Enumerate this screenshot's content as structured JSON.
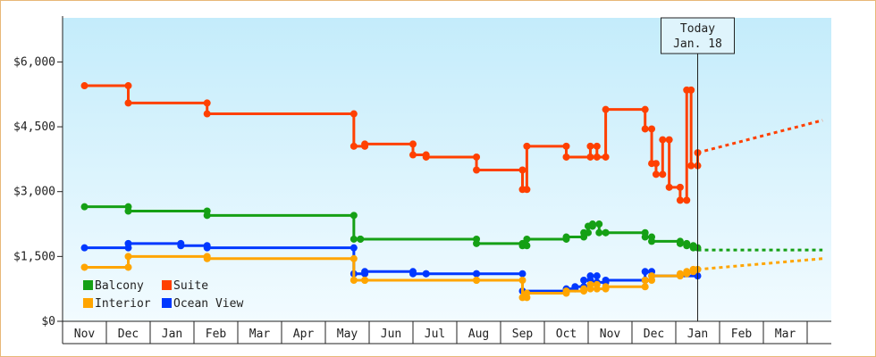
{
  "chart_data": {
    "type": "line",
    "y_ticks": [
      "$0",
      "$1,500",
      "$3,000",
      "$4,500",
      "$6,000"
    ],
    "y_tick_values": [
      0,
      1500,
      3000,
      4500,
      6000
    ],
    "ylim": [
      0,
      6000
    ],
    "x_months": [
      "Nov",
      "Dec",
      "Jan",
      "Feb",
      "Mar",
      "Apr",
      "May",
      "Jun",
      "Jul",
      "Aug",
      "Sep",
      "Oct",
      "Nov",
      "Dec",
      "Jan",
      "Feb",
      "Mar"
    ],
    "today_label_line1": "Today",
    "today_label_line2": "Jan. 18",
    "today_month_index": 14.0,
    "legend_placement": "bottom-left",
    "grid": false,
    "series": [
      {
        "name": "Suite",
        "color": "#ff4000",
        "points": [
          [
            0.0,
            5450
          ],
          [
            1.0,
            5450
          ],
          [
            1.0,
            5050
          ],
          [
            2.8,
            5050
          ],
          [
            2.8,
            4800
          ],
          [
            6.15,
            4800
          ],
          [
            6.15,
            4050
          ],
          [
            6.4,
            4050
          ],
          [
            6.4,
            4100
          ],
          [
            7.5,
            4100
          ],
          [
            7.5,
            3850
          ],
          [
            7.8,
            3850
          ],
          [
            7.8,
            3800
          ],
          [
            8.95,
            3800
          ],
          [
            8.95,
            3500
          ],
          [
            10.0,
            3500
          ],
          [
            10.0,
            3050
          ],
          [
            10.1,
            3050
          ],
          [
            10.1,
            4050
          ],
          [
            11.0,
            4050
          ],
          [
            11.0,
            3800
          ],
          [
            11.55,
            3800
          ],
          [
            11.55,
            4050
          ],
          [
            11.7,
            4050
          ],
          [
            11.7,
            3800
          ],
          [
            11.9,
            3800
          ],
          [
            11.9,
            4900
          ],
          [
            12.8,
            4900
          ],
          [
            12.8,
            4450
          ],
          [
            12.95,
            4450
          ],
          [
            12.95,
            3650
          ],
          [
            13.05,
            3650
          ],
          [
            13.05,
            3400
          ],
          [
            13.2,
            3400
          ],
          [
            13.2,
            4200
          ],
          [
            13.35,
            4200
          ],
          [
            13.35,
            3100
          ],
          [
            13.6,
            3100
          ],
          [
            13.6,
            2800
          ],
          [
            13.75,
            2800
          ],
          [
            13.75,
            5350
          ],
          [
            13.85,
            5350
          ],
          [
            13.85,
            3600
          ],
          [
            14.0,
            3600
          ],
          [
            14.0,
            3900
          ]
        ],
        "projection": [
          [
            14.0,
            3900
          ],
          [
            16.85,
            4650
          ]
        ]
      },
      {
        "name": "Balcony",
        "color": "#15a015",
        "points": [
          [
            0.0,
            2650
          ],
          [
            1.0,
            2650
          ],
          [
            1.0,
            2550
          ],
          [
            2.8,
            2550
          ],
          [
            2.8,
            2450
          ],
          [
            6.15,
            2450
          ],
          [
            6.15,
            1900
          ],
          [
            6.3,
            1900
          ],
          [
            6.3,
            1900
          ],
          [
            8.95,
            1900
          ],
          [
            8.95,
            1800
          ],
          [
            10.0,
            1800
          ],
          [
            10.0,
            1750
          ],
          [
            10.1,
            1750
          ],
          [
            10.1,
            1900
          ],
          [
            11.0,
            1900
          ],
          [
            11.0,
            1950
          ],
          [
            11.4,
            1950
          ],
          [
            11.4,
            2050
          ],
          [
            11.5,
            2050
          ],
          [
            11.5,
            2200
          ],
          [
            11.6,
            2200
          ],
          [
            11.6,
            2250
          ],
          [
            11.75,
            2250
          ],
          [
            11.75,
            2050
          ],
          [
            11.9,
            2050
          ],
          [
            11.9,
            2050
          ],
          [
            12.8,
            2050
          ],
          [
            12.8,
            1950
          ],
          [
            12.95,
            1950
          ],
          [
            12.95,
            1850
          ],
          [
            13.6,
            1850
          ],
          [
            13.6,
            1800
          ],
          [
            13.75,
            1800
          ],
          [
            13.75,
            1750
          ],
          [
            13.9,
            1750
          ],
          [
            13.9,
            1700
          ],
          [
            14.0,
            1700
          ]
        ],
        "projection": [
          [
            14.0,
            1650
          ],
          [
            16.85,
            1650
          ]
        ]
      },
      {
        "name": "Ocean View",
        "color": "#0038ff",
        "points": [
          [
            0.0,
            1700
          ],
          [
            1.0,
            1700
          ],
          [
            1.0,
            1800
          ],
          [
            2.2,
            1800
          ],
          [
            2.2,
            1750
          ],
          [
            2.8,
            1750
          ],
          [
            2.8,
            1700
          ],
          [
            6.15,
            1700
          ],
          [
            6.15,
            1100
          ],
          [
            6.4,
            1100
          ],
          [
            6.4,
            1150
          ],
          [
            7.5,
            1150
          ],
          [
            7.5,
            1100
          ],
          [
            7.8,
            1100
          ],
          [
            7.8,
            1100
          ],
          [
            8.95,
            1100
          ],
          [
            8.95,
            1100
          ],
          [
            10.0,
            1100
          ],
          [
            10.0,
            700
          ],
          [
            11.0,
            700
          ],
          [
            11.0,
            750
          ],
          [
            11.2,
            750
          ],
          [
            11.2,
            800
          ],
          [
            11.4,
            800
          ],
          [
            11.4,
            950
          ],
          [
            11.55,
            950
          ],
          [
            11.55,
            1050
          ],
          [
            11.7,
            1050
          ],
          [
            11.7,
            900
          ],
          [
            11.9,
            900
          ],
          [
            11.9,
            950
          ],
          [
            12.8,
            950
          ],
          [
            12.8,
            1150
          ],
          [
            12.95,
            1150
          ],
          [
            12.95,
            1050
          ],
          [
            14.0,
            1050
          ]
        ],
        "projection": []
      },
      {
        "name": "Interior",
        "color": "#ffa500",
        "points": [
          [
            0.0,
            1250
          ],
          [
            1.0,
            1250
          ],
          [
            1.0,
            1500
          ],
          [
            2.8,
            1500
          ],
          [
            2.8,
            1450
          ],
          [
            6.15,
            1450
          ],
          [
            6.15,
            950
          ],
          [
            6.4,
            950
          ],
          [
            6.4,
            950
          ],
          [
            8.95,
            950
          ],
          [
            8.95,
            950
          ],
          [
            10.0,
            950
          ],
          [
            10.0,
            550
          ],
          [
            10.1,
            550
          ],
          [
            10.1,
            650
          ],
          [
            11.0,
            650
          ],
          [
            11.0,
            700
          ],
          [
            11.4,
            700
          ],
          [
            11.4,
            750
          ],
          [
            11.55,
            750
          ],
          [
            11.55,
            850
          ],
          [
            11.7,
            850
          ],
          [
            11.7,
            750
          ],
          [
            11.9,
            750
          ],
          [
            11.9,
            800
          ],
          [
            12.8,
            800
          ],
          [
            12.8,
            950
          ],
          [
            12.95,
            950
          ],
          [
            12.95,
            1050
          ],
          [
            13.6,
            1050
          ],
          [
            13.6,
            1100
          ],
          [
            13.75,
            1100
          ],
          [
            13.75,
            1150
          ],
          [
            13.9,
            1150
          ],
          [
            13.9,
            1200
          ],
          [
            14.0,
            1200
          ]
        ],
        "projection": [
          [
            14.0,
            1200
          ],
          [
            16.85,
            1450
          ]
        ]
      }
    ],
    "legend": [
      {
        "name": "Balcony",
        "color": "#15a015"
      },
      {
        "name": "Suite",
        "color": "#ff4000"
      },
      {
        "name": "Interior",
        "color": "#ffa500"
      },
      {
        "name": "Ocean View",
        "color": "#0038ff"
      }
    ]
  }
}
